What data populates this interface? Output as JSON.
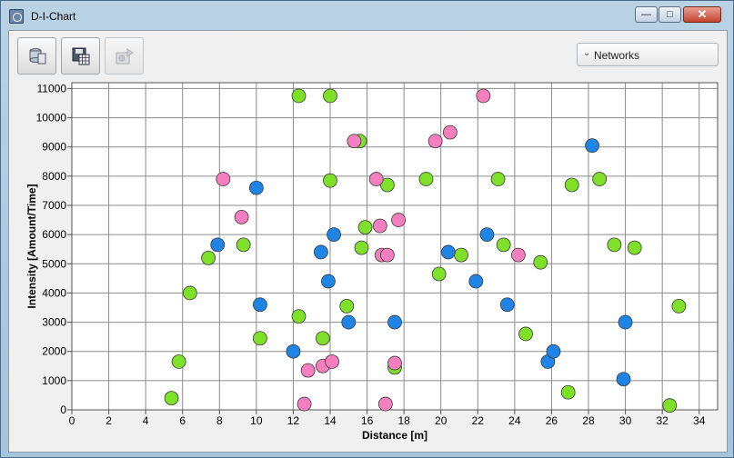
{
  "window": {
    "title": "D-I-Chart",
    "buttons": {
      "minimize": "—",
      "maximize": "□",
      "close": "✕"
    }
  },
  "toolbar": {
    "buttons": [
      {
        "name": "database-icon",
        "enabled": true
      },
      {
        "name": "save-table-icon",
        "enabled": true
      },
      {
        "name": "export-chart-icon",
        "enabled": false
      }
    ],
    "dropdown": {
      "label": "Networks"
    }
  },
  "chart_data": {
    "type": "scatter",
    "xlabel": "Distance [m]",
    "ylabel": "Intensity [Amount/Time]",
    "xlim": [
      0,
      35
    ],
    "ylim": [
      0,
      11200
    ],
    "xticks": [
      0,
      2,
      4,
      6,
      8,
      10,
      12,
      14,
      16,
      18,
      20,
      22,
      24,
      26,
      28,
      30,
      32,
      34
    ],
    "yticks": [
      0,
      1000,
      2000,
      3000,
      4000,
      5000,
      6000,
      7000,
      8000,
      9000,
      10000,
      11000
    ],
    "grid": true,
    "series": [
      {
        "color": "#7fe02a",
        "points": [
          [
            5.4,
            400
          ],
          [
            5.8,
            1650
          ],
          [
            6.4,
            4000
          ],
          [
            7.4,
            5200
          ],
          [
            9.3,
            5650
          ],
          [
            10.2,
            2450
          ],
          [
            12.3,
            10750
          ],
          [
            12.3,
            3200
          ],
          [
            13.6,
            2450
          ],
          [
            14.0,
            10750
          ],
          [
            14.0,
            7850
          ],
          [
            14.9,
            3550
          ],
          [
            15.6,
            9200
          ],
          [
            15.7,
            5550
          ],
          [
            15.9,
            6250
          ],
          [
            17.1,
            7700
          ],
          [
            17.5,
            1450
          ],
          [
            19.2,
            7900
          ],
          [
            19.9,
            4650
          ],
          [
            21.1,
            5300
          ],
          [
            23.1,
            7900
          ],
          [
            23.4,
            5650
          ],
          [
            24.6,
            2600
          ],
          [
            25.4,
            5050
          ],
          [
            26.9,
            600
          ],
          [
            27.1,
            7700
          ],
          [
            28.6,
            7900
          ],
          [
            29.4,
            5650
          ],
          [
            30.5,
            5550
          ],
          [
            32.4,
            150
          ],
          [
            32.9,
            3550
          ]
        ]
      },
      {
        "color": "#1e85e6",
        "points": [
          [
            7.9,
            5650
          ],
          [
            10.0,
            7600
          ],
          [
            10.2,
            3600
          ],
          [
            12.0,
            2000
          ],
          [
            13.5,
            5400
          ],
          [
            13.9,
            4400
          ],
          [
            14.2,
            6000
          ],
          [
            15.0,
            3000
          ],
          [
            17.5,
            3000
          ],
          [
            20.4,
            5400
          ],
          [
            21.9,
            4400
          ],
          [
            22.5,
            6000
          ],
          [
            23.6,
            3600
          ],
          [
            25.8,
            1650
          ],
          [
            26.1,
            2000
          ],
          [
            28.2,
            9050
          ],
          [
            29.9,
            1050
          ],
          [
            30.0,
            3000
          ]
        ]
      },
      {
        "color": "#f57fbe",
        "points": [
          [
            8.2,
            7900
          ],
          [
            9.2,
            6600
          ],
          [
            12.6,
            200
          ],
          [
            12.8,
            1350
          ],
          [
            13.6,
            1500
          ],
          [
            14.1,
            1650
          ],
          [
            15.3,
            9200
          ],
          [
            16.5,
            7900
          ],
          [
            16.7,
            6300
          ],
          [
            16.8,
            5300
          ],
          [
            17.0,
            200
          ],
          [
            17.1,
            5300
          ],
          [
            17.5,
            1600
          ],
          [
            17.7,
            6500
          ],
          [
            19.7,
            9200
          ],
          [
            20.5,
            9500
          ],
          [
            22.3,
            10750
          ],
          [
            24.2,
            5300
          ]
        ]
      }
    ]
  }
}
